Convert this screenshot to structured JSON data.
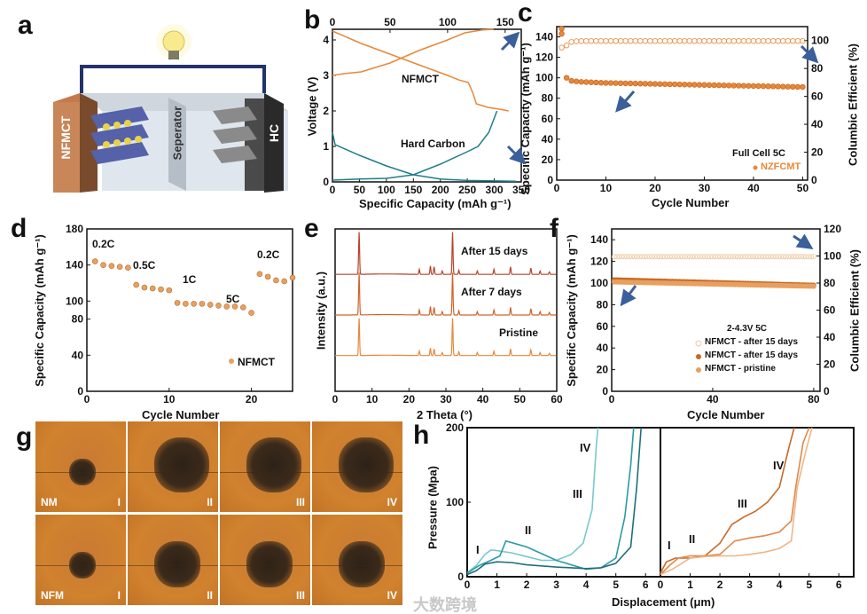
{
  "panel_labels": {
    "a": "a",
    "b": "b",
    "c": "c",
    "d": "d",
    "e": "e",
    "f": "f",
    "g": "g",
    "h": "h"
  },
  "schematic": {
    "cathode": "NFMCT",
    "separator": "Seperator",
    "anode": "HC",
    "icon": "lightbulb-icon"
  },
  "colors": {
    "orange": "#e8883a",
    "dark_orange": "#c86a25",
    "teal": "#1f7f8a",
    "light_teal": "#7ac7cf",
    "arrow": "#3a5f9a",
    "xrd_top": "#b9432a",
    "xrd_mid": "#d0642a",
    "xrd_bot": "#e8883a"
  },
  "chart_data": [
    {
      "id": "b",
      "type": "line",
      "xlabel": "Specific Capacity (mAh g⁻¹)",
      "ylabel": "Voltage (V)",
      "xlim": [
        0,
        350
      ],
      "xticks": [
        "0",
        "50",
        "100",
        "150",
        "200",
        "250",
        "300",
        "350"
      ],
      "x2lim": [
        0,
        164
      ],
      "x2ticks": [
        "0",
        "50",
        "100",
        "150"
      ],
      "ylim": [
        0,
        4.3
      ],
      "yticks": [
        "0",
        "1",
        "2",
        "3",
        "4"
      ],
      "annotations": [
        "NFMCT",
        "Hard Carbon"
      ],
      "series": [
        {
          "name": "NFMCT charge",
          "axis": "top",
          "color": "#e8883a",
          "x": [
            0,
            10,
            25,
            50,
            75,
            100,
            115,
            130,
            140
          ],
          "y": [
            3.0,
            3.05,
            3.1,
            3.35,
            3.7,
            4.0,
            4.2,
            4.28,
            4.3
          ]
        },
        {
          "name": "NFMCT discharge",
          "axis": "top",
          "color": "#e8883a",
          "x": [
            0,
            25,
            50,
            75,
            100,
            110,
            118,
            122,
            125,
            135,
            145,
            153
          ],
          "y": [
            4.25,
            3.9,
            3.6,
            3.3,
            3.0,
            2.87,
            2.8,
            2.5,
            2.2,
            2.1,
            2.05,
            2.0
          ]
        },
        {
          "name": "Hard Carbon discharge",
          "axis": "bottom",
          "color": "#1f7f8a",
          "x": [
            0,
            5,
            50,
            100,
            150,
            200,
            250,
            340
          ],
          "y": [
            1.4,
            1.05,
            0.75,
            0.45,
            0.2,
            0.08,
            0.04,
            0.02
          ]
        },
        {
          "name": "Hard Carbon charge",
          "axis": "bottom",
          "color": "#1f7f8a",
          "x": [
            0,
            50,
            100,
            150,
            200,
            250,
            270,
            290,
            305
          ],
          "y": [
            0.05,
            0.08,
            0.1,
            0.2,
            0.5,
            0.85,
            1.0,
            1.4,
            2.0
          ]
        }
      ]
    },
    {
      "id": "c",
      "type": "scatter",
      "xlabel": "Cycle Number",
      "ylabel": "Specific Capacity (mAh g⁻¹)",
      "y2label": "Columbic Efficient (%)",
      "xlim": [
        0,
        51
      ],
      "xticks": [
        "0",
        "10",
        "20",
        "30",
        "40",
        "50"
      ],
      "ylim": [
        0,
        150
      ],
      "yticks": [
        "0",
        "20",
        "40",
        "60",
        "80",
        "100",
        "120",
        "140"
      ],
      "y2lim": [
        0,
        110
      ],
      "y2ticks": [
        "0",
        "20",
        "40",
        "60",
        "80",
        "100"
      ],
      "legend_title": "Full Cell 5C",
      "legend": [
        "NZFCMT"
      ],
      "series": [
        {
          "name": "Specific capacity",
          "axis": "left",
          "filled": true,
          "color": "#e8883a",
          "x": [
            1,
            1,
            2,
            3,
            4,
            5,
            6,
            7,
            8,
            9,
            10,
            11,
            12,
            13,
            14,
            15,
            16,
            17,
            18,
            19,
            20,
            21,
            22,
            23,
            24,
            25,
            26,
            27,
            28,
            29,
            30,
            31,
            32,
            33,
            34,
            35,
            36,
            37,
            38,
            39,
            40,
            41,
            42,
            43,
            44,
            45,
            46,
            47,
            48,
            49,
            50
          ],
          "y": [
            148,
            143,
            100,
            97,
            96.5,
            96,
            95.8,
            95.6,
            95.4,
            95.2,
            95,
            94.9,
            94.8,
            94.7,
            94.6,
            94.5,
            94.4,
            94.3,
            94.2,
            94.1,
            94,
            93.9,
            93.8,
            93.7,
            93.6,
            93.5,
            93.4,
            93.3,
            93.2,
            93.1,
            93,
            92.9,
            92.8,
            92.7,
            92.6,
            92.5,
            92.4,
            92.3,
            92.2,
            92.1,
            92,
            91.9,
            91.8,
            91.7,
            91.6,
            91.5,
            91.4,
            91.3,
            91.2,
            91.1,
            91
          ]
        },
        {
          "name": "Columbic efficiency",
          "axis": "right",
          "filled": false,
          "color": "#e8883a",
          "x": [
            1,
            2,
            3,
            4,
            5,
            6,
            7,
            8,
            9,
            10,
            11,
            12,
            13,
            14,
            15,
            16,
            17,
            18,
            19,
            20,
            21,
            22,
            23,
            24,
            25,
            26,
            27,
            28,
            29,
            30,
            31,
            32,
            33,
            34,
            35,
            36,
            37,
            38,
            39,
            40,
            41,
            42,
            43,
            44,
            45,
            46,
            47,
            48,
            49,
            50
          ],
          "y": [
            95,
            96.5,
            99,
            99.5,
            99.6,
            99.7,
            99.7,
            99.7,
            99.7,
            99.7,
            99.7,
            99.7,
            99.7,
            99.7,
            99.7,
            99.7,
            99.7,
            99.7,
            99.7,
            99.7,
            99.7,
            99.7,
            99.7,
            99.7,
            99.7,
            99.7,
            99.7,
            99.7,
            99.7,
            99.7,
            99.7,
            99.7,
            99.7,
            99.7,
            99.7,
            99.7,
            99.7,
            99.7,
            99.7,
            99.7,
            99.7,
            99.7,
            99.7,
            99.7,
            99.7,
            99.7,
            99.7,
            99.7,
            99.7,
            99.7
          ]
        }
      ]
    },
    {
      "id": "d",
      "type": "scatter",
      "xlabel": "Cycle Number",
      "ylabel": "Specific Capacity (mAh g⁻¹)",
      "xlim": [
        0,
        25
      ],
      "xticks": [
        "0",
        "10",
        "20"
      ],
      "ylim": [
        0,
        180
      ],
      "yticks": [
        "0",
        "40",
        "80",
        "100",
        "140",
        "180"
      ],
      "rate_labels": [
        "0.2C",
        "0.5C",
        "1C",
        "5C",
        "0.2C"
      ],
      "legend": [
        "NFMCT"
      ],
      "series": [
        {
          "name": "NFMCT",
          "filled": true,
          "color": "#e8a060",
          "x": [
            1,
            2,
            3,
            4,
            5,
            6,
            7,
            8,
            9,
            10,
            11,
            12,
            13,
            14,
            15,
            16,
            17,
            18,
            19,
            20,
            21,
            22,
            23,
            24,
            25
          ],
          "y": [
            144,
            140,
            139,
            138,
            137,
            118,
            115,
            114,
            113,
            112,
            98,
            97,
            97,
            97,
            96,
            95,
            94,
            94,
            93,
            87,
            130,
            127,
            123,
            122,
            126
          ]
        }
      ]
    },
    {
      "id": "e",
      "type": "line",
      "xlabel": "2 Theta (°)",
      "ylabel": "Intensity (a.u.)",
      "xlim": [
        0,
        60
      ],
      "xticks": [
        "0",
        "10",
        "20",
        "30",
        "40",
        "50",
        "60"
      ],
      "peaks": {
        "positions": [
          6.5,
          22.8,
          25.8,
          26.8,
          29,
          31.8,
          33.5,
          38.5,
          43,
          47.5,
          53,
          55.5,
          58
        ],
        "intensities": [
          1.0,
          0.12,
          0.2,
          0.18,
          0.08,
          1.0,
          0.1,
          0.08,
          0.12,
          0.18,
          0.15,
          0.08,
          0.06
        ]
      },
      "series": [
        {
          "name": "After 15 days",
          "color": "#b9432a"
        },
        {
          "name": "After 7 days",
          "color": "#d0642a"
        },
        {
          "name": "Pristine",
          "color": "#e8883a"
        }
      ]
    },
    {
      "id": "f",
      "type": "scatter",
      "xlabel": "Cycle Number",
      "ylabel": "Specific Capacity (mAh g⁻¹)",
      "y2label": "Columbic Efficient (%)",
      "xlim": [
        0,
        82.5
      ],
      "xticks": [
        "0",
        "40",
        "80"
      ],
      "ylim": [
        0,
        150
      ],
      "yticks": [
        "0",
        "20",
        "40",
        "60",
        "80",
        "100",
        "120",
        "140"
      ],
      "y2lim": [
        0,
        120
      ],
      "y2ticks": [
        "0",
        "20",
        "40",
        "60",
        "80",
        "100",
        "120"
      ],
      "legend_title": "2-4.3V 5C",
      "legend": [
        "NFMCT - after 15 days",
        "NFMCT - after 15 days",
        "NFMCT - pristine"
      ],
      "series": [
        {
          "name": "NFMCT - after 15 days (CE)",
          "axis": "right",
          "filled": false,
          "color": "#f0c7a0",
          "x_start": 1,
          "x_end": 80,
          "y_start": 99.5,
          "y_end": 99.5
        },
        {
          "name": "NFMCT - after 15 days",
          "axis": "left",
          "filled": true,
          "color": "#c86a25",
          "x_start": 1,
          "x_end": 80,
          "y_start": 103,
          "y_end": 98
        },
        {
          "name": "NFMCT - pristine",
          "axis": "left",
          "filled": true,
          "color": "#e8a060",
          "x_start": 1,
          "x_end": 80,
          "y_start": 101,
          "y_end": 97
        }
      ]
    },
    {
      "id": "h",
      "type": "line",
      "xlabel": "Displacement (μm)",
      "ylabel": "Pressure (Mpa)",
      "xlim": [
        0,
        6.5
      ],
      "xticks": [
        "0",
        "1",
        "2",
        "3",
        "4",
        "5",
        "6"
      ],
      "ylim": [
        0,
        200
      ],
      "yticks": [
        "0",
        "100",
        "200"
      ],
      "stage_labels": [
        "I",
        "II",
        "III",
        "IV"
      ],
      "left_series": [
        {
          "color": "#7ac7cf",
          "x": [
            0,
            0.3,
            0.6,
            0.8,
            1.0,
            1.5,
            2.0,
            2.5,
            3.0,
            3.5,
            3.9,
            4.2,
            4.35,
            4.4
          ],
          "y": [
            5,
            15,
            30,
            36,
            35,
            32,
            27,
            22,
            22,
            30,
            45,
            90,
            180,
            200
          ]
        },
        {
          "color": "#2a9aa5",
          "x": [
            0,
            0.4,
            0.8,
            1.1,
            1.3,
            2,
            3,
            4,
            4.5,
            5,
            5.3,
            5.5,
            5.6
          ],
          "y": [
            5,
            15,
            22,
            28,
            48,
            40,
            22,
            10,
            12,
            25,
            80,
            150,
            200
          ]
        },
        {
          "color": "#1f6f7a",
          "x": [
            0,
            0.3,
            0.6,
            1.0,
            1.5,
            2,
            3,
            4,
            4.5,
            5,
            5.5,
            5.7,
            5.85
          ],
          "y": [
            3,
            8,
            17,
            20,
            19,
            16,
            13,
            11,
            12,
            18,
            40,
            120,
            200
          ]
        }
      ],
      "right_series": [
        {
          "color": "#c86a25",
          "x": [
            0,
            0.2,
            0.5,
            1,
            1.5,
            2,
            2.4,
            2.8,
            3.2,
            3.6,
            4,
            4.3,
            4.5
          ],
          "y": [
            5,
            20,
            25,
            25,
            28,
            45,
            70,
            80,
            88,
            100,
            120,
            170,
            200
          ]
        },
        {
          "color": "#e0884a",
          "x": [
            0,
            0.3,
            0.6,
            1,
            1.5,
            2,
            2.5,
            3,
            3.5,
            4,
            4.4,
            4.55,
            4.8,
            5.0
          ],
          "y": [
            3,
            15,
            25,
            28,
            28,
            30,
            48,
            52,
            55,
            60,
            75,
            120,
            180,
            200
          ]
        },
        {
          "color": "#f0b585",
          "x": [
            0,
            0.4,
            0.8,
            1,
            1.5,
            2,
            2.5,
            3,
            3.5,
            4,
            4.4,
            4.6,
            4.9,
            5.1
          ],
          "y": [
            3,
            10,
            20,
            25,
            27,
            28,
            28,
            30,
            33,
            38,
            48,
            120,
            170,
            200
          ]
        }
      ]
    }
  ],
  "micrographs": {
    "rows": [
      {
        "label": "NM",
        "stages": [
          "I",
          "II",
          "III",
          "IV"
        ]
      },
      {
        "label": "NFM",
        "stages": [
          "I",
          "II",
          "III",
          "IV"
        ]
      }
    ]
  },
  "watermark": "大数跨境"
}
